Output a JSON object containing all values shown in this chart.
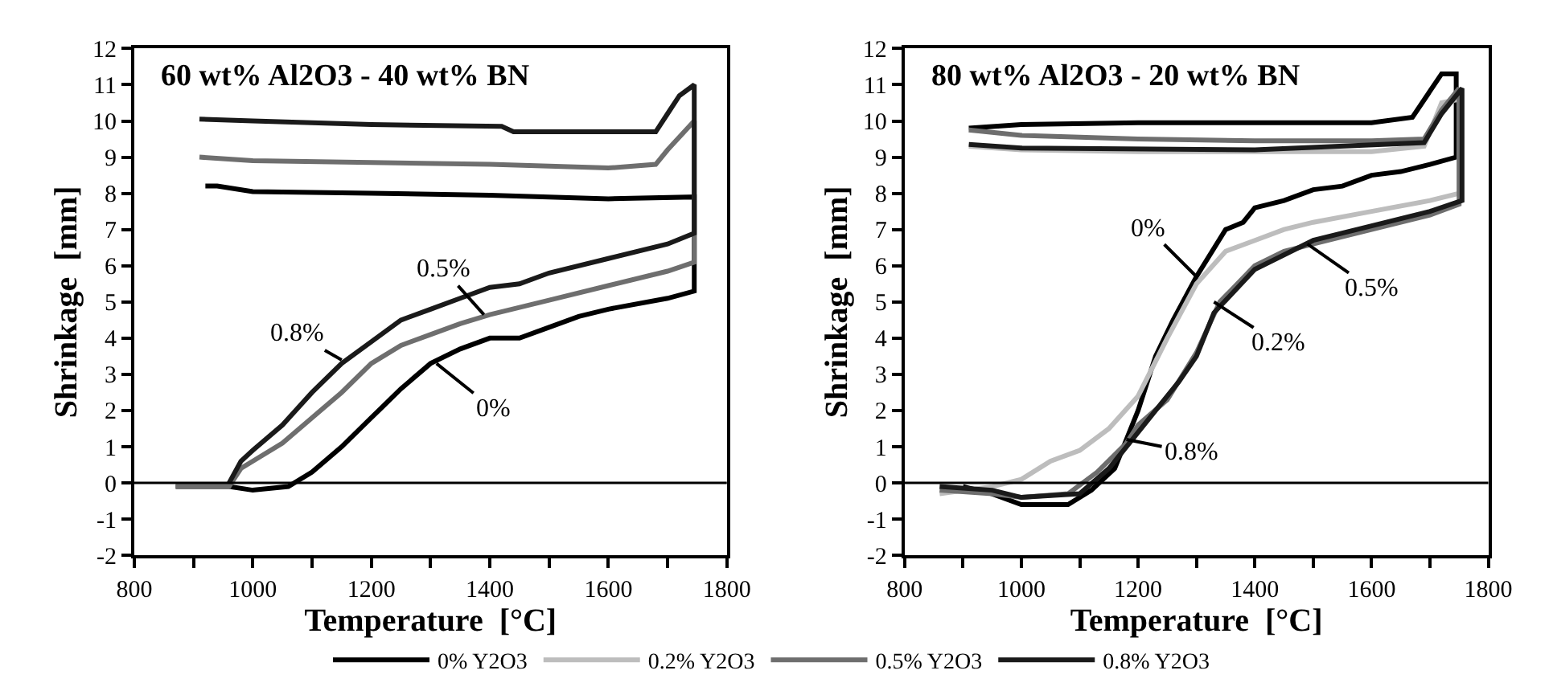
{
  "chart_data": [
    {
      "type": "line",
      "title": "60 wt% Al2O3 - 40 wt% BN",
      "xlabel": "Temperature  [°C]",
      "ylabel": "Shrinkage  [mm]",
      "xlim": [
        800,
        1800
      ],
      "ylim": [
        -2,
        12
      ],
      "xticks": [
        800,
        {
          "value": 900,
          "label": null
        },
        1000,
        {
          "value": 1100,
          "label": null
        },
        1200,
        {
          "value": 1300,
          "label": null
        },
        1400,
        {
          "value": 1500,
          "label": null
        },
        1600,
        {
          "value": 1700,
          "label": null
        },
        1800
      ],
      "yticks": [
        -2,
        -1,
        0,
        1,
        2,
        3,
        4,
        5,
        6,
        7,
        8,
        9,
        10,
        11,
        12
      ],
      "legend": false,
      "marker": "none",
      "line_style": "solid",
      "ref_lines": [
        {
          "axis": "y",
          "value": 0,
          "color": "#000000"
        }
      ],
      "annotations": [
        {
          "text": "0.5%",
          "x": 1390,
          "y": 4.65
        },
        {
          "text": "0.8%",
          "x": 1150,
          "y": 3.4
        },
        {
          "text": "0%",
          "x": 1310,
          "y": 3.3
        }
      ],
      "series": [
        {
          "color": "#000000",
          "x": [
            870,
            960,
            1000,
            1060,
            1100,
            1150,
            1200,
            1250,
            1300,
            1350,
            1400,
            1450,
            1500,
            1550,
            1600,
            1700,
            1745,
            1745,
            1600,
            1400,
            1200,
            1000,
            940,
            920
          ],
          "values": [
            -0.1,
            -0.1,
            -0.2,
            -0.1,
            0.3,
            1.0,
            1.8,
            2.6,
            3.3,
            3.7,
            4.0,
            4.0,
            4.3,
            4.6,
            4.8,
            5.1,
            5.3,
            7.9,
            7.85,
            7.95,
            8.0,
            8.05,
            8.2,
            8.2
          ]
        },
        {
          "color": "#6e6e6e",
          "x": [
            870,
            960,
            980,
            1000,
            1050,
            1100,
            1150,
            1200,
            1250,
            1300,
            1350,
            1400,
            1450,
            1500,
            1600,
            1700,
            1745,
            1745,
            1700,
            1680,
            1600,
            1400,
            1200,
            1000,
            910
          ],
          "values": [
            -0.1,
            -0.1,
            0.4,
            0.6,
            1.1,
            1.8,
            2.5,
            3.3,
            3.8,
            4.1,
            4.4,
            4.65,
            4.85,
            5.05,
            5.45,
            5.85,
            6.1,
            10.0,
            9.2,
            8.8,
            8.7,
            8.8,
            8.85,
            8.9,
            9.0
          ]
        },
        {
          "color": "#1a1a1a",
          "x": [
            960,
            980,
            1000,
            1050,
            1100,
            1150,
            1200,
            1250,
            1300,
            1350,
            1400,
            1450,
            1500,
            1600,
            1700,
            1745,
            1745,
            1720,
            1700,
            1680,
            1600,
            1440,
            1420,
            1200,
            1000,
            910
          ],
          "values": [
            0.0,
            0.6,
            0.9,
            1.6,
            2.5,
            3.3,
            3.9,
            4.5,
            4.8,
            5.1,
            5.4,
            5.5,
            5.8,
            6.2,
            6.6,
            6.9,
            11.0,
            10.7,
            10.2,
            9.7,
            9.7,
            9.7,
            9.85,
            9.9,
            10.0,
            10.05
          ]
        }
      ]
    },
    {
      "type": "line",
      "title": "80 wt% Al2O3 - 20 wt% BN",
      "xlabel": "Temperature  [°C]",
      "ylabel": "Shrinkage  [mm]",
      "xlim": [
        800,
        1800
      ],
      "ylim": [
        -2,
        12
      ],
      "xticks": [
        800,
        {
          "value": 900,
          "label": null
        },
        1000,
        {
          "value": 1100,
          "label": null
        },
        1200,
        {
          "value": 1300,
          "label": null
        },
        1400,
        {
          "value": 1500,
          "label": null
        },
        1600,
        {
          "value": 1700,
          "label": null
        },
        1800
      ],
      "yticks": [
        -2,
        -1,
        0,
        1,
        2,
        3,
        4,
        5,
        6,
        7,
        8,
        9,
        10,
        11,
        12
      ],
      "legend": "bottom",
      "marker": "none",
      "line_style": "solid",
      "ref_lines": [
        {
          "axis": "y",
          "value": 0,
          "color": "#000000"
        }
      ],
      "annotations": [
        {
          "text": "0%",
          "x": 1300,
          "y": 5.7
        },
        {
          "text": "0.5%",
          "x": 1490,
          "y": 6.6
        },
        {
          "text": "0.2%",
          "x": 1330,
          "y": 5.0
        },
        {
          "text": "0.8%",
          "x": 1180,
          "y": 1.2
        }
      ],
      "series": [
        {
          "name": "0% Y2O3",
          "color": "#000000",
          "x": [
            900,
            950,
            1000,
            1080,
            1120,
            1160,
            1200,
            1230,
            1260,
            1300,
            1350,
            1380,
            1400,
            1450,
            1500,
            1550,
            1600,
            1650,
            1700,
            1745,
            1745,
            1720,
            1670,
            1600,
            1400,
            1200,
            1000,
            910
          ],
          "values": [
            -0.1,
            -0.3,
            -0.6,
            -0.6,
            -0.2,
            0.4,
            2.0,
            3.5,
            4.5,
            5.7,
            7.0,
            7.2,
            7.6,
            7.8,
            8.1,
            8.2,
            8.5,
            8.6,
            8.8,
            9.0,
            11.3,
            11.3,
            10.1,
            9.95,
            9.95,
            9.95,
            9.9,
            9.8
          ]
        },
        {
          "name": "0.2% Y2O3",
          "color": "#bdbdbd",
          "x": [
            860,
            950,
            1000,
            1050,
            1100,
            1150,
            1200,
            1250,
            1300,
            1350,
            1400,
            1450,
            1500,
            1600,
            1700,
            1750,
            1750,
            1720,
            1690,
            1600,
            1400,
            1200,
            1000,
            910
          ],
          "values": [
            -0.3,
            -0.1,
            0.1,
            0.6,
            0.9,
            1.5,
            2.4,
            4.0,
            5.5,
            6.4,
            6.7,
            7.0,
            7.2,
            7.5,
            7.8,
            8.0,
            10.6,
            10.5,
            9.3,
            9.15,
            9.15,
            9.15,
            9.2,
            9.3
          ]
        },
        {
          "name": "0.5% Y2O3",
          "color": "#6e6e6e",
          "x": [
            860,
            950,
            1000,
            1080,
            1130,
            1180,
            1200,
            1250,
            1300,
            1340,
            1400,
            1450,
            1500,
            1600,
            1700,
            1750,
            1750,
            1720,
            1690,
            1600,
            1400,
            1200,
            1000,
            910
          ],
          "values": [
            -0.2,
            -0.3,
            -0.4,
            -0.3,
            0.3,
            1.1,
            1.6,
            2.3,
            3.6,
            5.0,
            6.0,
            6.4,
            6.6,
            7.0,
            7.4,
            7.7,
            10.9,
            10.3,
            9.5,
            9.45,
            9.45,
            9.5,
            9.6,
            9.75
          ]
        },
        {
          "name": "0.8% Y2O3",
          "color": "#1a1a1a",
          "x": [
            860,
            950,
            1000,
            1100,
            1150,
            1190,
            1230,
            1270,
            1300,
            1330,
            1400,
            1450,
            1500,
            1600,
            1700,
            1755,
            1755,
            1720,
            1690,
            1400,
            1000,
            910
          ],
          "values": [
            -0.1,
            -0.2,
            -0.4,
            -0.3,
            0.4,
            1.2,
            2.0,
            2.8,
            3.5,
            4.7,
            5.9,
            6.3,
            6.7,
            7.1,
            7.5,
            7.8,
            10.9,
            10.2,
            9.4,
            9.2,
            9.25,
            9.35
          ]
        }
      ]
    }
  ]
}
